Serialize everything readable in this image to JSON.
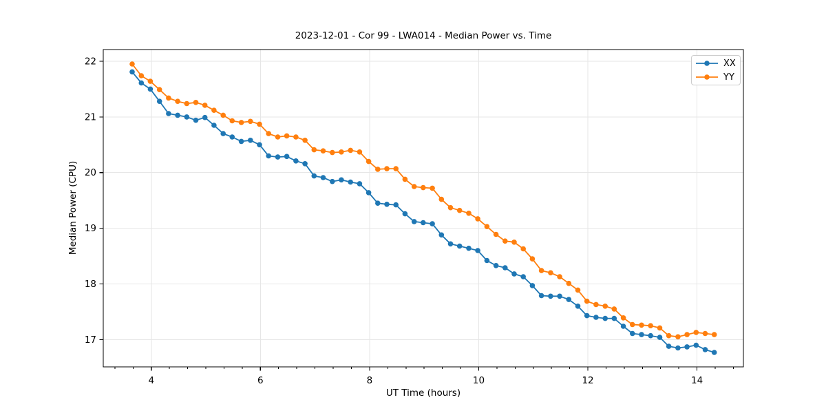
{
  "chart_data": {
    "type": "line",
    "title": "2023-12-01 - Cor 99 - LWA014 - Median Power vs. Time",
    "xlabel": "UT Time (hours)",
    "ylabel": "Median Power (CPU)",
    "xlim": [
      3.12,
      14.85
    ],
    "ylim": [
      16.51,
      22.21
    ],
    "xticks": [
      4,
      6,
      8,
      10,
      12,
      14
    ],
    "xticks_minor": [
      3.333,
      3.667,
      4.333,
      4.667,
      5.0,
      5.333,
      5.667,
      6.333,
      6.667,
      7.0,
      7.333,
      7.667,
      8.333,
      8.667,
      9.0,
      9.333,
      9.667,
      10.333,
      10.667,
      11.0,
      11.333,
      11.667,
      12.333,
      12.667,
      13.0,
      13.333,
      13.667,
      14.333,
      14.667
    ],
    "yticks": [
      17,
      18,
      19,
      20,
      21,
      22
    ],
    "grid": true,
    "grid_color": "#e6e6e6",
    "spine_color": "#000000",
    "legend": {
      "position": "upper-right",
      "entries": [
        "XX",
        "YY"
      ]
    },
    "marker": "circle",
    "x": [
      3.65,
      3.817,
      3.983,
      4.15,
      4.317,
      4.483,
      4.65,
      4.817,
      4.983,
      5.15,
      5.317,
      5.483,
      5.65,
      5.817,
      5.983,
      6.15,
      6.317,
      6.483,
      6.65,
      6.817,
      6.983,
      7.15,
      7.317,
      7.483,
      7.65,
      7.817,
      7.983,
      8.15,
      8.317,
      8.483,
      8.65,
      8.817,
      8.983,
      9.15,
      9.317,
      9.483,
      9.65,
      9.817,
      9.983,
      10.15,
      10.317,
      10.483,
      10.65,
      10.817,
      10.983,
      11.15,
      11.317,
      11.483,
      11.65,
      11.817,
      11.983,
      12.15,
      12.317,
      12.483,
      12.65,
      12.817,
      12.983,
      13.15,
      13.317,
      13.483,
      13.65,
      13.817,
      13.983,
      14.15,
      14.317
    ],
    "series": [
      {
        "name": "XX",
        "color": "#1f77b4",
        "values": [
          21.81,
          21.61,
          21.5,
          21.28,
          21.06,
          21.03,
          21.0,
          20.94,
          20.99,
          20.85,
          20.7,
          20.64,
          20.56,
          20.58,
          20.5,
          20.3,
          20.28,
          20.29,
          20.21,
          20.16,
          19.94,
          19.91,
          19.84,
          19.87,
          19.83,
          19.8,
          19.64,
          19.45,
          19.43,
          19.42,
          19.26,
          19.12,
          19.1,
          19.08,
          18.88,
          18.72,
          18.68,
          18.64,
          18.6,
          18.42,
          18.33,
          18.29,
          18.18,
          18.13,
          17.97,
          17.79,
          17.78,
          17.78,
          17.72,
          17.6,
          17.43,
          17.4,
          17.38,
          17.38,
          17.24,
          17.11,
          17.09,
          17.07,
          17.04,
          16.88,
          16.85,
          16.87,
          16.9,
          16.82,
          16.77
        ]
      },
      {
        "name": "YY",
        "color": "#ff7f0e",
        "values": [
          21.95,
          21.74,
          21.64,
          21.49,
          21.34,
          21.28,
          21.24,
          21.26,
          21.21,
          21.12,
          21.03,
          20.93,
          20.9,
          20.92,
          20.87,
          20.7,
          20.64,
          20.66,
          20.64,
          20.58,
          20.41,
          20.39,
          20.36,
          20.37,
          20.4,
          20.37,
          20.2,
          20.06,
          20.07,
          20.07,
          19.88,
          19.75,
          19.73,
          19.72,
          19.52,
          19.37,
          19.32,
          19.27,
          19.17,
          19.03,
          18.89,
          18.77,
          18.75,
          18.63,
          18.45,
          18.24,
          18.2,
          18.13,
          18.01,
          17.89,
          17.69,
          17.63,
          17.6,
          17.55,
          17.39,
          17.27,
          17.26,
          17.25,
          17.21,
          17.07,
          17.05,
          17.09,
          17.13,
          17.11,
          17.09
        ]
      }
    ]
  }
}
